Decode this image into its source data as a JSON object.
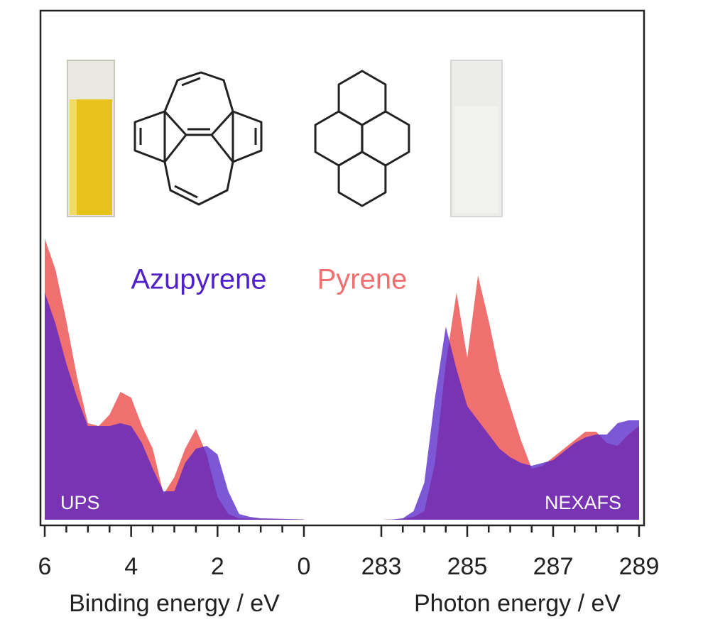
{
  "chart_data": [
    {
      "type": "area",
      "annotation": "UPS",
      "x_label": "Binding energy / eV",
      "xlim": [
        6,
        0
      ],
      "xticks": [
        6,
        4,
        2,
        0
      ],
      "xminor": [
        5.5,
        5,
        4.5,
        3.5,
        3,
        2.5,
        1.5,
        1,
        0.5
      ],
      "ylim": [
        0,
        100
      ],
      "x": [
        6,
        5.75,
        5.5,
        5.25,
        5,
        4.75,
        4.5,
        4.25,
        4,
        3.75,
        3.5,
        3.25,
        3,
        2.75,
        2.5,
        2.25,
        2,
        1.75,
        1.5,
        1.25,
        1,
        0.75,
        0.5,
        0.25,
        0
      ],
      "series": [
        {
          "name": "Pyrene",
          "color": "#f07070",
          "values": [
            99,
            88,
            70,
            50,
            34,
            33,
            37,
            45,
            43,
            33,
            25,
            9,
            15,
            25,
            32,
            23,
            8,
            2,
            0.5,
            0.4,
            0.3,
            0.3,
            0.2,
            0.2,
            0.1
          ]
        },
        {
          "name": "Azupyrene",
          "color": "#5020c8",
          "values": [
            80,
            69,
            55,
            43,
            33,
            33,
            33,
            34,
            33,
            27,
            18,
            10,
            10,
            20,
            25,
            26,
            23,
            10,
            2,
            1,
            0.5,
            0.4,
            0.3,
            0.2,
            0.1
          ]
        }
      ]
    },
    {
      "type": "area",
      "annotation": "NEXAFS",
      "x_label": "Photon energy / eV",
      "xlim": [
        283,
        289
      ],
      "xticks": [
        283,
        285,
        287,
        289
      ],
      "xminor": [
        283.5,
        284,
        284.5,
        285.5,
        286,
        286.5,
        287.5,
        288,
        288.5
      ],
      "ylim": [
        0,
        100
      ],
      "x": [
        283,
        283.25,
        283.5,
        283.75,
        284,
        284.25,
        284.5,
        284.75,
        285,
        285.25,
        285.5,
        285.75,
        286,
        286.25,
        286.5,
        286.75,
        287,
        287.25,
        287.5,
        287.75,
        288,
        288.25,
        288.5,
        288.75,
        289
      ],
      "series": [
        {
          "color": "#f07070",
          "values": [
            0,
            0.1,
            0.3,
            1,
            3,
            20,
            55,
            80,
            57,
            86,
            70,
            52,
            40,
            28,
            18,
            19,
            22,
            25,
            28,
            31,
            31,
            27,
            26,
            30,
            33
          ]
        },
        {
          "color": "#5020c8",
          "values": [
            0,
            0.1,
            0.5,
            3,
            13,
            43,
            68,
            53,
            40,
            35,
            30,
            25,
            22,
            20,
            19,
            20,
            21,
            24,
            27,
            29,
            30,
            30,
            34,
            35,
            35
          ]
        }
      ]
    }
  ]
}
